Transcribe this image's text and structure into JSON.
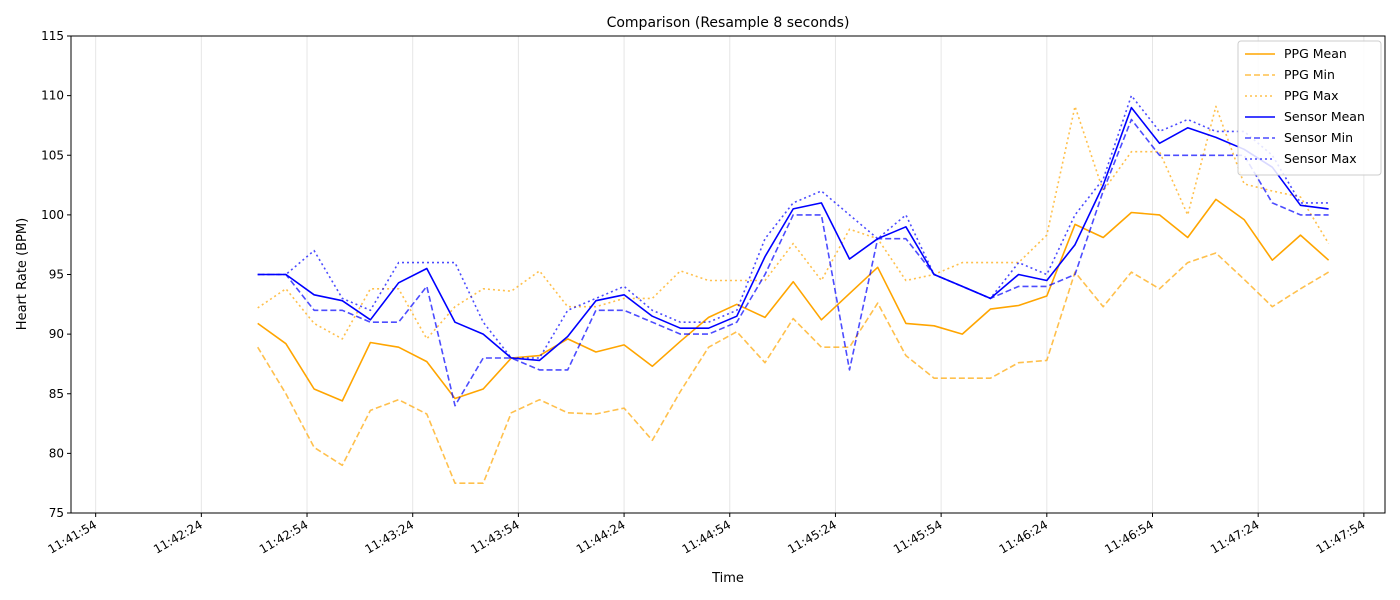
{
  "chart_data": {
    "type": "line",
    "title": "Comparison (Resample 8 seconds)",
    "xlabel": "Time",
    "ylabel": "Heart Rate (BPM)",
    "ylim": [
      75,
      115
    ],
    "yticks": [
      75,
      80,
      85,
      90,
      95,
      100,
      105,
      110,
      115
    ],
    "xlim": [
      "11:41:47",
      "11:48:00"
    ],
    "xticks": [
      "11:41:54",
      "11:42:24",
      "11:42:54",
      "11:43:24",
      "11:43:54",
      "11:44:24",
      "11:44:54",
      "11:45:24",
      "11:45:54",
      "11:46:24",
      "11:46:54",
      "11:47:24",
      "11:47:54"
    ],
    "grid": "vertical",
    "legend": "top-right",
    "x": [
      "11:42:40",
      "11:42:48",
      "11:42:56",
      "11:43:04",
      "11:43:12",
      "11:43:20",
      "11:43:28",
      "11:43:36",
      "11:43:44",
      "11:43:52",
      "11:44:00",
      "11:44:08",
      "11:44:16",
      "11:44:24",
      "11:44:32",
      "11:44:40",
      "11:44:48",
      "11:44:56",
      "11:45:04",
      "11:45:12",
      "11:45:20",
      "11:45:28",
      "11:45:36",
      "11:45:44",
      "11:45:52",
      "11:46:00",
      "11:46:08",
      "11:46:16",
      "11:46:24",
      "11:46:32",
      "11:46:40",
      "11:46:48",
      "11:46:56",
      "11:47:04",
      "11:47:12",
      "11:47:20",
      "11:47:28",
      "11:47:36",
      "11:47:44"
    ],
    "series": [
      {
        "name": "PPG Mean",
        "color": "#ffa500",
        "dash": "solid",
        "values": [
          90.9,
          89.2,
          85.4,
          84.4,
          89.3,
          88.9,
          87.7,
          84.6,
          85.4,
          88.0,
          88.2,
          89.6,
          88.5,
          89.1,
          87.3,
          89.4,
          91.4,
          92.5,
          91.4,
          94.4,
          91.2,
          93.4,
          95.6,
          90.9,
          90.7,
          90.0,
          92.1,
          92.4,
          93.2,
          99.2,
          98.1,
          100.2,
          100.0,
          98.1,
          101.3,
          99.6,
          96.2,
          98.3,
          96.2
        ]
      },
      {
        "name": "PPG Min",
        "color": "#ffa500",
        "dash": "dashed",
        "values": [
          88.9,
          85.0,
          80.5,
          79.0,
          83.6,
          84.5,
          83.3,
          77.5,
          77.5,
          83.4,
          84.5,
          83.4,
          83.3,
          83.8,
          81.1,
          85.2,
          88.9,
          90.2,
          87.6,
          91.3,
          88.9,
          88.9,
          92.6,
          88.2,
          86.3,
          86.3,
          86.3,
          87.6,
          87.8,
          95.2,
          92.3,
          95.2,
          93.8,
          96.0,
          96.8,
          94.6,
          92.3,
          93.8,
          95.2
        ]
      },
      {
        "name": "PPG Max",
        "color": "#ffa500",
        "dash": "dotted",
        "values": [
          92.2,
          93.8,
          90.9,
          89.6,
          93.8,
          93.8,
          89.6,
          92.3,
          93.8,
          93.6,
          95.3,
          92.3,
          92.3,
          93.0,
          93.0,
          95.3,
          94.5,
          94.5,
          94.5,
          97.6,
          94.5,
          98.8,
          98.0,
          94.5,
          95.0,
          96.0,
          96.0,
          96.0,
          98.3,
          109.1,
          102.0,
          105.3,
          105.3,
          100.0,
          109.1,
          102.6,
          102.0,
          101.5,
          97.6
        ]
      },
      {
        "name": "Sensor Mean",
        "color": "#0000ff",
        "dash": "solid",
        "values": [
          95.0,
          95.0,
          93.3,
          92.8,
          91.2,
          94.3,
          95.5,
          91.0,
          90.0,
          88.0,
          87.8,
          89.8,
          92.8,
          93.3,
          91.5,
          90.5,
          90.5,
          91.5,
          96.5,
          100.5,
          101.0,
          96.3,
          98.0,
          99.0,
          95.0,
          94.0,
          93.0,
          95.0,
          94.5,
          97.5,
          102.5,
          109.0,
          106.0,
          107.3,
          106.5,
          105.5,
          104.0,
          100.8,
          100.5
        ]
      },
      {
        "name": "Sensor Min",
        "color": "#0000ff",
        "dash": "dashed",
        "values": [
          95.0,
          95.0,
          92.0,
          92.0,
          91.0,
          91.0,
          94.0,
          84.0,
          88.0,
          88.0,
          87.0,
          87.0,
          92.0,
          92.0,
          91.0,
          90.0,
          90.0,
          91.0,
          95.0,
          100.0,
          100.0,
          87.0,
          98.0,
          98.0,
          95.0,
          94.0,
          93.0,
          94.0,
          94.0,
          95.0,
          102.0,
          108.0,
          105.0,
          105.0,
          105.0,
          105.0,
          101.0,
          100.0,
          100.0
        ]
      },
      {
        "name": "Sensor Max",
        "color": "#0000ff",
        "dash": "dotted",
        "values": [
          95.0,
          95.0,
          97.0,
          93.0,
          92.0,
          96.0,
          96.0,
          96.0,
          91.0,
          88.0,
          88.0,
          92.0,
          93.0,
          94.0,
          92.0,
          91.0,
          91.0,
          92.0,
          98.0,
          101.0,
          102.0,
          100.0,
          98.0,
          100.0,
          95.0,
          94.0,
          93.0,
          96.0,
          95.0,
          100.0,
          103.0,
          110.0,
          107.0,
          108.0,
          107.0,
          107.0,
          105.0,
          101.0,
          101.0
        ]
      }
    ]
  }
}
